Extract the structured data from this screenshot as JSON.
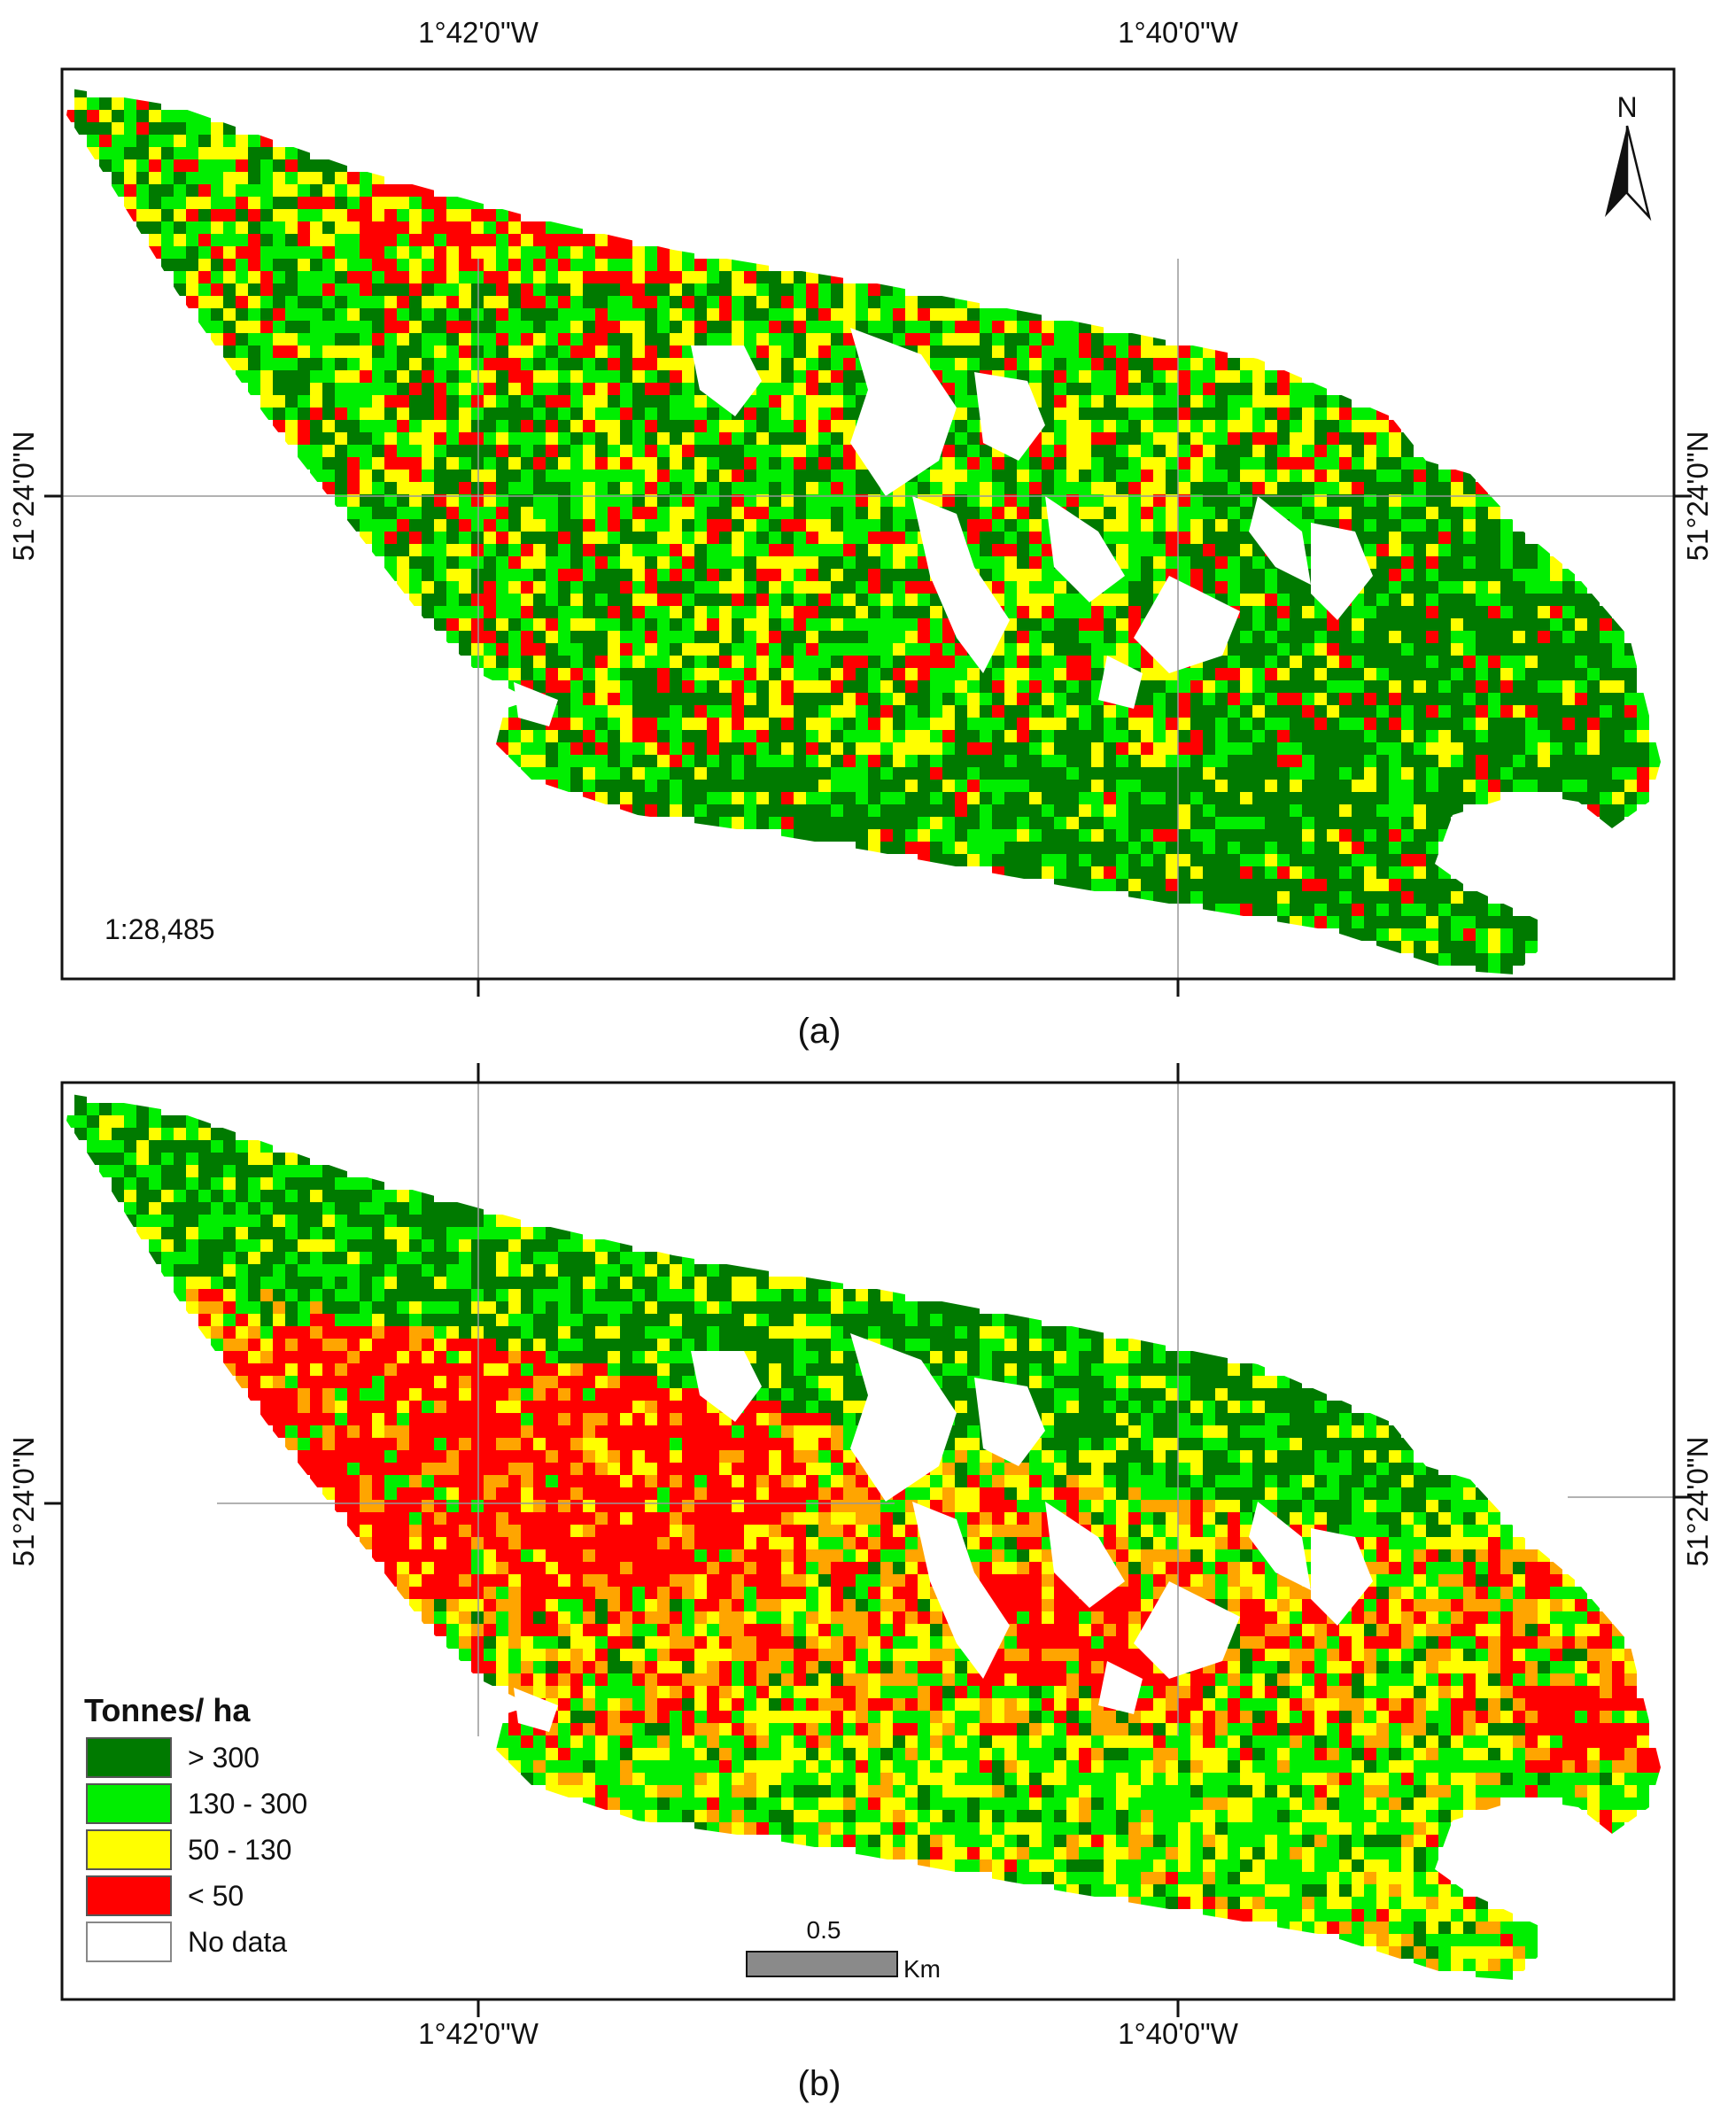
{
  "figure": {
    "panel_a": {
      "label": "(a)",
      "scale_text": "1:28,485",
      "top_axis_labels": [
        "1°42'0\"W",
        "1°40'0\"W"
      ],
      "left_axis_label": "51°24'0\"N",
      "right_axis_label": "51°24'0\"N",
      "north_label": "N"
    },
    "panel_b": {
      "label": "(b)",
      "bottom_axis_labels": [
        "1°42'0\"W",
        "1°40'0\"W"
      ],
      "left_axis_label": "51°24'0\"N",
      "right_axis_label": "51°24'0\"N",
      "scalebar": {
        "value": "0.5",
        "unit": "Km"
      }
    }
  },
  "legend": {
    "title": "Tonnes/ ha",
    "items": [
      {
        "label": "> 300",
        "color": "#007a00"
      },
      {
        "label": "130 - 300",
        "color": "#00ee00"
      },
      {
        "label": "50 - 130",
        "color": "#ffff00"
      },
      {
        "label": "< 50",
        "color": "#ff0000"
      },
      {
        "label": "No data",
        "color": "#ffffff"
      }
    ]
  },
  "colors": {
    "dark_green": "#007a00",
    "green": "#00ee00",
    "yellow": "#ffff00",
    "red": "#ff0000",
    "orange": "#ffa500",
    "frame": "#111111",
    "grid": "#999999",
    "scalebar_fill": "#8a8a8a"
  }
}
